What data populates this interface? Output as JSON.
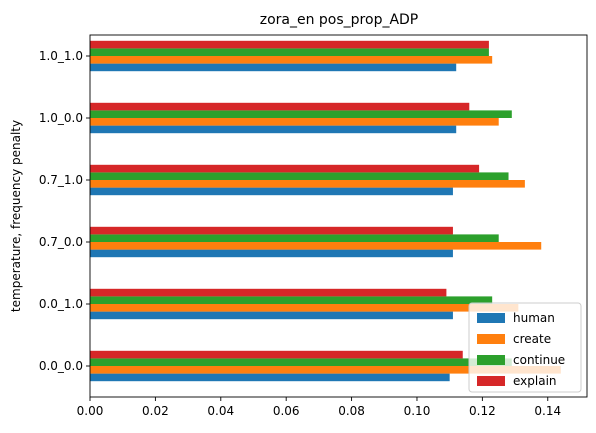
{
  "chart_data": {
    "type": "bar",
    "orientation": "horizontal",
    "title": "zora_en pos_prop_ADP",
    "xlabel": "",
    "ylabel": "temperature, frequency penalty",
    "categories": [
      "0.0_0.0",
      "0.0_1.0",
      "0.7_0.0",
      "0.7_1.0",
      "1.0_0.0",
      "1.0_1.0"
    ],
    "series": [
      {
        "name": "human",
        "color": "#1f77b4",
        "values": [
          0.11,
          0.111,
          0.111,
          0.111,
          0.112,
          0.112
        ]
      },
      {
        "name": "create",
        "color": "#ff7f0e",
        "values": [
          0.144,
          0.131,
          0.138,
          0.133,
          0.125,
          0.123
        ]
      },
      {
        "name": "continue",
        "color": "#2ca02c",
        "values": [
          0.129,
          0.123,
          0.125,
          0.128,
          0.129,
          0.122
        ]
      },
      {
        "name": "explain",
        "color": "#d62728",
        "values": [
          0.114,
          0.109,
          0.111,
          0.119,
          0.116,
          0.122
        ]
      }
    ],
    "xlim": [
      0,
      0.152
    ],
    "xticks": [
      "0.00",
      "0.02",
      "0.04",
      "0.06",
      "0.08",
      "0.10",
      "0.12",
      "0.14"
    ],
    "xtick_values": [
      0,
      0.02,
      0.04,
      0.06,
      0.08,
      0.1,
      0.12,
      0.14
    ],
    "grid": false,
    "legend_position": "bottom-right"
  }
}
